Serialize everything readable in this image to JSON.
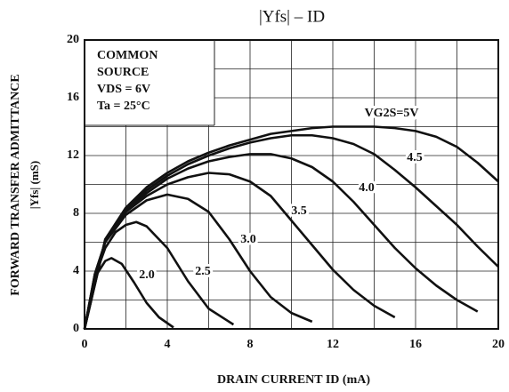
{
  "chart_data": {
    "type": "line",
    "title": "|Yfs| – ID",
    "xlabel": "DRAIN CURRENT  ID  (mA)",
    "ylabel": [
      "FORWARD TRANSFER ADMITTANCE",
      "|Yfs|  (mS)"
    ],
    "annotation": [
      "COMMON",
      "SOURCE",
      "VDS = 6V",
      "Ta = 25°C"
    ],
    "xlim": [
      0,
      20
    ],
    "ylim": [
      0,
      20
    ],
    "xticks": [
      0,
      4,
      8,
      12,
      16,
      20
    ],
    "yticks": [
      0,
      4,
      8,
      12,
      16,
      20
    ],
    "minor_xticks": [
      2,
      6,
      10,
      14,
      18
    ],
    "minor_yticks": [
      2,
      6,
      10,
      14,
      18
    ],
    "grid": true,
    "series": [
      {
        "name": "VG2S=5V",
        "color": "#111111",
        "x": [
          0,
          1,
          2,
          3,
          4,
          5,
          6,
          7,
          8,
          9,
          10,
          11,
          12,
          13,
          14,
          15,
          16,
          17,
          18,
          19,
          20
        ],
        "values": [
          0,
          6.2,
          8.4,
          9.8,
          10.8,
          11.6,
          12.2,
          12.7,
          13.1,
          13.5,
          13.7,
          13.9,
          14,
          14,
          14,
          13.9,
          13.7,
          13.3,
          12.6,
          11.5,
          10.2
        ]
      },
      {
        "name": "4.5",
        "color": "#111111",
        "x": [
          0,
          1,
          2,
          3,
          4,
          5,
          6,
          7,
          8,
          9,
          10,
          11,
          12,
          13,
          14,
          15,
          16,
          17,
          18,
          19,
          20
        ],
        "values": [
          0,
          6.2,
          8.3,
          9.6,
          10.6,
          11.4,
          12,
          12.5,
          12.9,
          13.2,
          13.4,
          13.4,
          13.2,
          12.8,
          12.1,
          11,
          9.8,
          8.5,
          7.2,
          5.7,
          4.3
        ]
      },
      {
        "name": "4.0",
        "color": "#111111",
        "x": [
          0,
          1,
          2,
          3,
          4,
          5,
          6,
          7,
          8,
          9,
          10,
          11,
          12,
          13,
          14,
          15,
          16,
          17,
          18,
          19
        ],
        "values": [
          0,
          6.1,
          8.2,
          9.4,
          10.4,
          11.1,
          11.6,
          11.9,
          12.1,
          12.1,
          11.8,
          11.2,
          10.2,
          8.8,
          7.2,
          5.6,
          4.2,
          3,
          2,
          1.2
        ]
      },
      {
        "name": "3.5",
        "color": "#111111",
        "x": [
          0,
          0.5,
          1,
          2,
          3,
          4,
          5,
          6,
          7,
          8,
          9,
          10,
          11,
          12,
          13,
          14,
          15
        ],
        "values": [
          0,
          3.8,
          6,
          8.1,
          9.2,
          10,
          10.5,
          10.8,
          10.7,
          10.2,
          9.2,
          7.5,
          5.8,
          4.1,
          2.7,
          1.6,
          0.8
        ]
      },
      {
        "name": "3.0",
        "color": "#111111",
        "x": [
          0,
          0.5,
          1,
          2,
          3,
          4,
          5,
          6,
          7,
          8,
          9,
          10,
          11
        ],
        "values": [
          0,
          3.8,
          6,
          7.9,
          8.9,
          9.3,
          9,
          8.1,
          6.2,
          4,
          2.2,
          1.1,
          0.5
        ]
      },
      {
        "name": "2.5",
        "color": "#111111",
        "x": [
          0,
          0.5,
          1,
          1.5,
          2,
          2.5,
          3,
          4,
          5,
          6,
          7.2
        ],
        "values": [
          0,
          3.6,
          5.6,
          6.7,
          7.2,
          7.4,
          7.1,
          5.6,
          3.3,
          1.4,
          0.3
        ]
      },
      {
        "name": "2.0",
        "color": "#111111",
        "x": [
          0,
          0.3,
          0.6,
          1,
          1.3,
          1.8,
          2.4,
          3,
          3.6,
          4.3
        ],
        "values": [
          0,
          2.2,
          3.8,
          4.7,
          4.9,
          4.5,
          3.2,
          1.8,
          0.8,
          0.1
        ]
      }
    ]
  }
}
